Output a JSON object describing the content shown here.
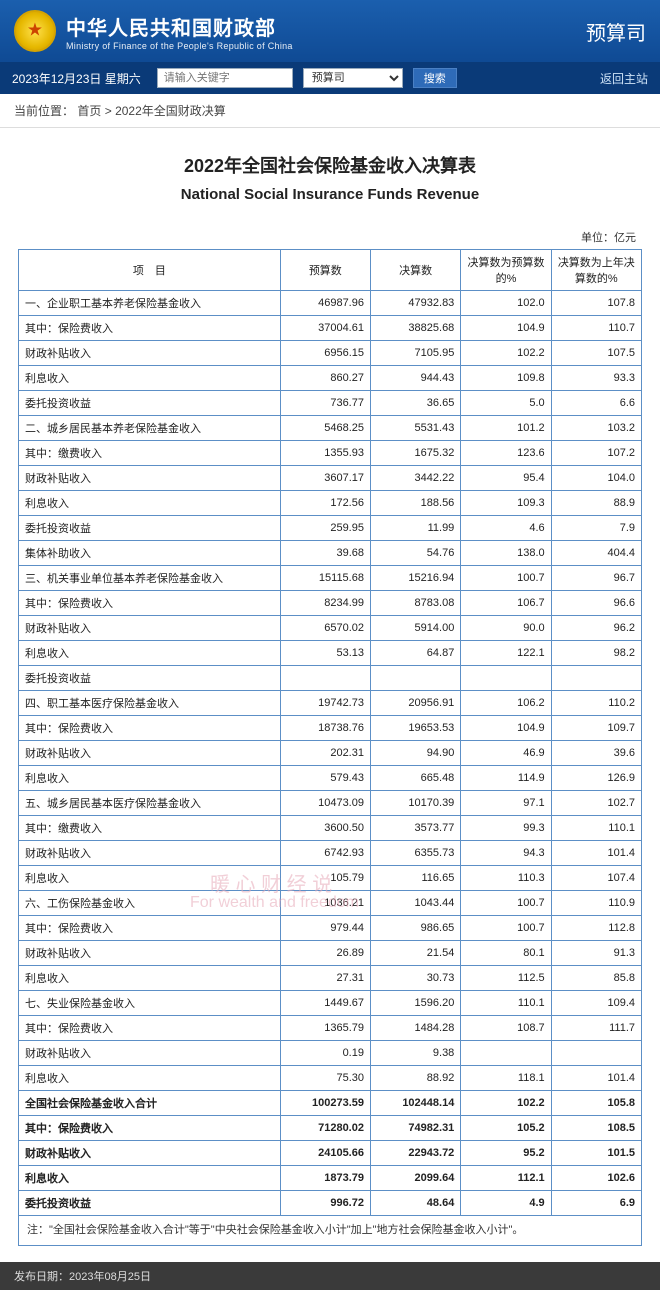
{
  "header": {
    "ministry_cn": "中华人民共和国财政部",
    "ministry_en": "Ministry of Finance of the People's Republic of China",
    "department": "预算司"
  },
  "nav": {
    "date": "2023年12月23日  星期六",
    "search_placeholder": "请输入关键字",
    "select_value": "预算司",
    "search_btn": "搜索",
    "back": "返回主站"
  },
  "breadcrumb": {
    "label": "当前位置：",
    "home": "首页",
    "sep": ">",
    "current": "2022年全国财政决算"
  },
  "title": {
    "cn": "2022年全国社会保险基金收入决算表",
    "en": "National Social Insurance Funds Revenue"
  },
  "unit_label": "单位：亿元",
  "columns": {
    "item": "项　目",
    "budget": "预算数",
    "actual": "决算数",
    "pct_budget": "决算数为预算数的%",
    "pct_prev": "决算数为上年决算数的%"
  },
  "rows": [
    {
      "indent": 0,
      "item": "一、企业职工基本养老保险基金收入",
      "budget": "46987.96",
      "actual": "47932.83",
      "pb": "102.0",
      "pp": "107.8"
    },
    {
      "indent": 1,
      "item": "其中：保险费收入",
      "budget": "37004.61",
      "actual": "38825.68",
      "pb": "104.9",
      "pp": "110.7"
    },
    {
      "indent": 2,
      "item": "财政补贴收入",
      "budget": "6956.15",
      "actual": "7105.95",
      "pb": "102.2",
      "pp": "107.5"
    },
    {
      "indent": 2,
      "item": "利息收入",
      "budget": "860.27",
      "actual": "944.43",
      "pb": "109.8",
      "pp": "93.3"
    },
    {
      "indent": 2,
      "item": "委托投资收益",
      "budget": "736.77",
      "actual": "36.65",
      "pb": "5.0",
      "pp": "6.6"
    },
    {
      "indent": 0,
      "item": "二、城乡居民基本养老保险基金收入",
      "budget": "5468.25",
      "actual": "5531.43",
      "pb": "101.2",
      "pp": "103.2"
    },
    {
      "indent": 1,
      "item": "其中：缴费收入",
      "budget": "1355.93",
      "actual": "1675.32",
      "pb": "123.6",
      "pp": "107.2"
    },
    {
      "indent": 2,
      "item": "财政补贴收入",
      "budget": "3607.17",
      "actual": "3442.22",
      "pb": "95.4",
      "pp": "104.0"
    },
    {
      "indent": 2,
      "item": "利息收入",
      "budget": "172.56",
      "actual": "188.56",
      "pb": "109.3",
      "pp": "88.9"
    },
    {
      "indent": 2,
      "item": "委托投资收益",
      "budget": "259.95",
      "actual": "11.99",
      "pb": "4.6",
      "pp": "7.9"
    },
    {
      "indent": 2,
      "item": "集体补助收入",
      "budget": "39.68",
      "actual": "54.76",
      "pb": "138.0",
      "pp": "404.4"
    },
    {
      "indent": 0,
      "item": "三、机关事业单位基本养老保险基金收入",
      "budget": "15115.68",
      "actual": "15216.94",
      "pb": "100.7",
      "pp": "96.7"
    },
    {
      "indent": 1,
      "item": "其中：保险费收入",
      "budget": "8234.99",
      "actual": "8783.08",
      "pb": "106.7",
      "pp": "96.6"
    },
    {
      "indent": 2,
      "item": "财政补贴收入",
      "budget": "6570.02",
      "actual": "5914.00",
      "pb": "90.0",
      "pp": "96.2"
    },
    {
      "indent": 2,
      "item": "利息收入",
      "budget": "53.13",
      "actual": "64.87",
      "pb": "122.1",
      "pp": "98.2"
    },
    {
      "indent": 2,
      "item": "委托投资收益",
      "budget": "",
      "actual": "",
      "pb": "",
      "pp": ""
    },
    {
      "indent": 0,
      "item": "四、职工基本医疗保险基金收入",
      "budget": "19742.73",
      "actual": "20956.91",
      "pb": "106.2",
      "pp": "110.2"
    },
    {
      "indent": 1,
      "item": "其中：保险费收入",
      "budget": "18738.76",
      "actual": "19653.53",
      "pb": "104.9",
      "pp": "109.7"
    },
    {
      "indent": 2,
      "item": "财政补贴收入",
      "budget": "202.31",
      "actual": "94.90",
      "pb": "46.9",
      "pp": "39.6"
    },
    {
      "indent": 2,
      "item": "利息收入",
      "budget": "579.43",
      "actual": "665.48",
      "pb": "114.9",
      "pp": "126.9"
    },
    {
      "indent": 0,
      "item": "五、城乡居民基本医疗保险基金收入",
      "budget": "10473.09",
      "actual": "10170.39",
      "pb": "97.1",
      "pp": "102.7"
    },
    {
      "indent": 1,
      "item": "其中：缴费收入",
      "budget": "3600.50",
      "actual": "3573.77",
      "pb": "99.3",
      "pp": "110.1"
    },
    {
      "indent": 2,
      "item": "财政补贴收入",
      "budget": "6742.93",
      "actual": "6355.73",
      "pb": "94.3",
      "pp": "101.4"
    },
    {
      "indent": 2,
      "item": "利息收入",
      "budget": "105.79",
      "actual": "116.65",
      "pb": "110.3",
      "pp": "107.4"
    },
    {
      "indent": 0,
      "item": "六、工伤保险基金收入",
      "budget": "1036.21",
      "actual": "1043.44",
      "pb": "100.7",
      "pp": "110.9"
    },
    {
      "indent": 1,
      "item": "其中：保险费收入",
      "budget": "979.44",
      "actual": "986.65",
      "pb": "100.7",
      "pp": "112.8"
    },
    {
      "indent": 2,
      "item": "财政补贴收入",
      "budget": "26.89",
      "actual": "21.54",
      "pb": "80.1",
      "pp": "91.3"
    },
    {
      "indent": 2,
      "item": "利息收入",
      "budget": "27.31",
      "actual": "30.73",
      "pb": "112.5",
      "pp": "85.8"
    },
    {
      "indent": 0,
      "item": "七、失业保险基金收入",
      "budget": "1449.67",
      "actual": "1596.20",
      "pb": "110.1",
      "pp": "109.4"
    },
    {
      "indent": 1,
      "item": "其中：保险费收入",
      "budget": "1365.79",
      "actual": "1484.28",
      "pb": "108.7",
      "pp": "111.7"
    },
    {
      "indent": 2,
      "item": "财政补贴收入",
      "budget": "0.19",
      "actual": "9.38",
      "pb": "",
      "pp": ""
    },
    {
      "indent": 2,
      "item": "利息收入",
      "budget": "75.30",
      "actual": "88.92",
      "pb": "118.1",
      "pp": "101.4"
    }
  ],
  "totals": [
    {
      "indent": 0,
      "item": "全国社会保险基金收入合计",
      "budget": "100273.59",
      "actual": "102448.14",
      "pb": "102.2",
      "pp": "105.8"
    },
    {
      "indent": 1,
      "item": "其中：保险费收入",
      "budget": "71280.02",
      "actual": "74982.31",
      "pb": "105.2",
      "pp": "108.5"
    },
    {
      "indent": 2,
      "item": "财政补贴收入",
      "budget": "24105.66",
      "actual": "22943.72",
      "pb": "95.2",
      "pp": "101.5"
    },
    {
      "indent": 2,
      "item": "利息收入",
      "budget": "1873.79",
      "actual": "2099.64",
      "pb": "112.1",
      "pp": "102.6"
    },
    {
      "indent": 2,
      "item": "委托投资收益",
      "budget": "996.72",
      "actual": "48.64",
      "pb": "4.9",
      "pp": "6.9"
    }
  ],
  "footnote": "注：\"全国社会保险基金收入合计\"等于\"中央社会保险基金收入小计\"加上\"地方社会保险基金收入小计\"。",
  "pubdate_label": "发布日期：",
  "pubdate": "2023年08月25日",
  "watermarks": {
    "cn": "暖 心 财 经 说",
    "en": "For wealth and freedom"
  },
  "colors": {
    "header_bg_top": "#1b5fae",
    "header_bg_bottom": "#0f4a94",
    "navbar_bg": "#0a3a78",
    "table_border": "#5c8fc6",
    "watermark": "#e7a8b8"
  }
}
